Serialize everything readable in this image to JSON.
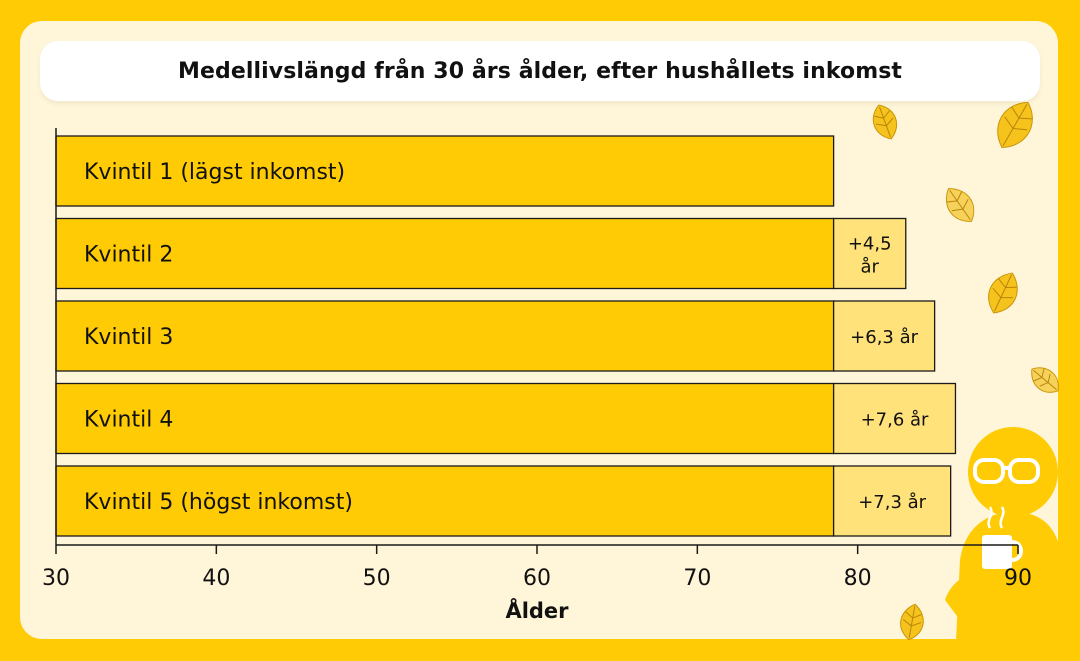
{
  "colors": {
    "page_bg": "#FFCB05",
    "card_bg": "#FFF6D9",
    "bar_fill": "#FFCB05",
    "increment_fill": "#FFE27A",
    "outline": "#1A1A1A",
    "leaf": "#F6C21C",
    "person": "#FFCB05"
  },
  "chart_data": {
    "type": "bar",
    "orientation": "horizontal",
    "title": "Medellivslängd från 30 års ålder, efter hushållets inkomst",
    "xlabel": "Ålder",
    "ylabel": "",
    "xlim": [
      30,
      90
    ],
    "xticks": [
      30,
      40,
      50,
      60,
      70,
      80,
      90
    ],
    "categories": [
      "Kvintil 1 (lägst inkomst)",
      "Kvintil 2",
      "Kvintil 3",
      "Kvintil 4",
      "Kvintil 5 (högst inkomst)"
    ],
    "base_value": 78.5,
    "increments": [
      0,
      4.5,
      6.3,
      7.6,
      7.3
    ],
    "increment_labels": [
      "",
      "+4,5 år",
      "+6,3 år",
      "+7,6 år",
      "+7,3 år"
    ],
    "grid": false,
    "legend": "none"
  },
  "decor": {
    "leaf_icons": [
      "leaf-icon",
      "leaf-icon",
      "leaf-icon",
      "leaf-icon",
      "leaf-icon",
      "leaf-icon"
    ],
    "person_icon": "person-with-glasses-and-mug-icon"
  }
}
